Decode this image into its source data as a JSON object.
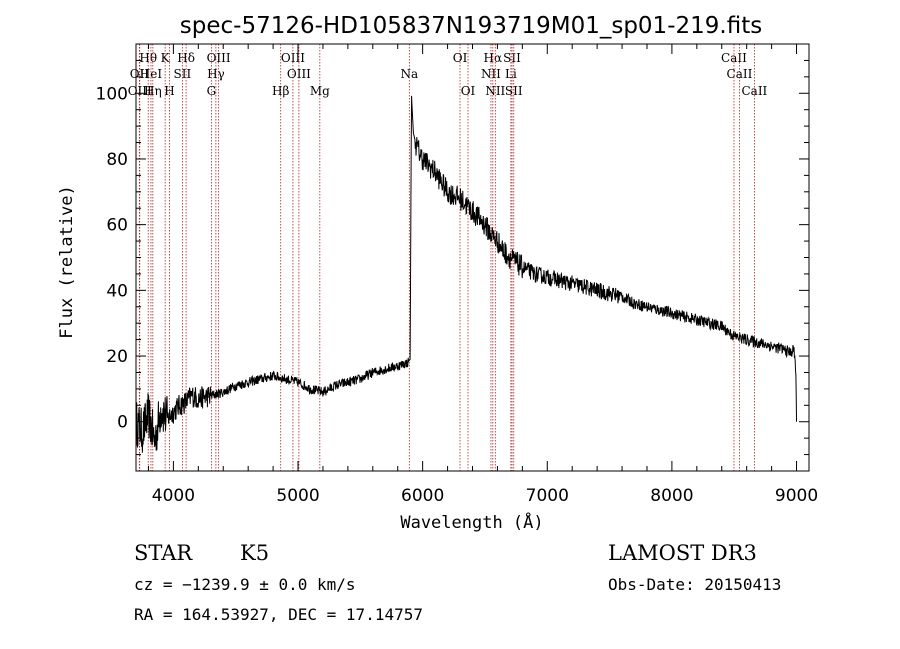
{
  "chart_data": {
    "type": "line",
    "title": "spec-57126-HD105837N193719M01_sp01-219.fits",
    "xlabel": "Wavelength (Å)",
    "ylabel": "Flux (relative)",
    "xlim": [
      3700,
      9100
    ],
    "ylim": [
      -15,
      115
    ],
    "xticks": [
      4000,
      5000,
      6000,
      7000,
      8000,
      9000
    ],
    "xtick_labels": [
      "4000",
      "5000",
      "6000",
      "7000",
      "8000",
      "9000"
    ],
    "yticks": [
      0,
      20,
      40,
      60,
      80,
      100
    ],
    "ytick_labels": [
      "0",
      "20",
      "40",
      "60",
      "80",
      "100"
    ],
    "grid": false,
    "series": [
      {
        "name": "flux",
        "x": [
          3700,
          3750,
          3800,
          3850,
          3900,
          3950,
          4000,
          4050,
          4100,
          4150,
          4200,
          4300,
          4400,
          4500,
          4600,
          4700,
          4800,
          4900,
          5000,
          5100,
          5200,
          5300,
          5400,
          5500,
          5600,
          5700,
          5800,
          5880,
          5900,
          5910,
          5925,
          5950,
          6000,
          6050,
          6100,
          6150,
          6200,
          6300,
          6400,
          6500,
          6550,
          6600,
          6650,
          6700,
          6800,
          6900,
          7000,
          7100,
          7200,
          7300,
          7400,
          7500,
          7600,
          7700,
          7800,
          7900,
          8000,
          8100,
          8200,
          8300,
          8400,
          8500,
          8600,
          8700,
          8800,
          8900,
          8950,
          8980,
          8995,
          9000
        ],
        "y": [
          0,
          -3,
          2,
          -6,
          4,
          1,
          3,
          5,
          6,
          8,
          7,
          8,
          9,
          11,
          12,
          13,
          14,
          13,
          12,
          10,
          9,
          11,
          12,
          13,
          15,
          16,
          17,
          18,
          19,
          100,
          88,
          84,
          80,
          78,
          76,
          73,
          70,
          68,
          64,
          60,
          57,
          55,
          52,
          50,
          47,
          45,
          44,
          43,
          42,
          41,
          40,
          39,
          38,
          36,
          35,
          34,
          33,
          32,
          31,
          30,
          29,
          26,
          25,
          24,
          23,
          22,
          21,
          22,
          15,
          0
        ]
      }
    ],
    "spectral_lines": [
      {
        "label": "Hθ",
        "wavelength": 3798,
        "row": 1
      },
      {
        "label": "OII",
        "wavelength": 3727,
        "row": 2
      },
      {
        "label": "OIII",
        "wavelength": 3730,
        "row": 3
      },
      {
        "label": "HeI",
        "wavelength": 3820,
        "row": 2
      },
      {
        "label": "Hη",
        "wavelength": 3835,
        "row": 3
      },
      {
        "label": "K",
        "wavelength": 3934,
        "row": 1
      },
      {
        "label": "SII",
        "wavelength": 4072,
        "row": 2
      },
      {
        "label": "H",
        "wavelength": 3969,
        "row": 3
      },
      {
        "label": "Hδ",
        "wavelength": 4102,
        "row": 1
      },
      {
        "label": "OIII",
        "wavelength": 4363,
        "row": 1
      },
      {
        "label": "Hγ",
        "wavelength": 4341,
        "row": 2
      },
      {
        "label": "G",
        "wavelength": 4305,
        "row": 3
      },
      {
        "label": "OIII",
        "wavelength": 4959,
        "row": 1
      },
      {
        "label": "OIII",
        "wavelength": 5007,
        "row": 2
      },
      {
        "label": "Hβ",
        "wavelength": 4861,
        "row": 3
      },
      {
        "label": "Mg",
        "wavelength": 5175,
        "row": 3
      },
      {
        "label": "Na",
        "wavelength": 5893,
        "row": 2
      },
      {
        "label": "OI",
        "wavelength": 6300,
        "row": 1
      },
      {
        "label": "OI",
        "wavelength": 6364,
        "row": 3
      },
      {
        "label": "Hα",
        "wavelength": 6563,
        "row": 1
      },
      {
        "label": "SII",
        "wavelength": 6717,
        "row": 1
      },
      {
        "label": "NII",
        "wavelength": 6548,
        "row": 2
      },
      {
        "label": "Li",
        "wavelength": 6708,
        "row": 2
      },
      {
        "label": "NII",
        "wavelength": 6583,
        "row": 3
      },
      {
        "label": "SII",
        "wavelength": 6731,
        "row": 3
      },
      {
        "label": "CaII",
        "wavelength": 8498,
        "row": 1
      },
      {
        "label": "CaII",
        "wavelength": 8542,
        "row": 2
      },
      {
        "label": "CaII",
        "wavelength": 8662,
        "row": 3
      }
    ]
  },
  "info": {
    "object_class": "STAR",
    "subclass": "K5",
    "survey": "LAMOST DR3",
    "cz": "cz = −1239.9 ± 0.0 km/s",
    "obs_date": "Obs-Date: 20150413",
    "coords": "RA = 164.53927, DEC =  17.14757"
  },
  "colors": {
    "line_marker": "#b22222",
    "flux": "#000000",
    "axes": "#000000"
  }
}
